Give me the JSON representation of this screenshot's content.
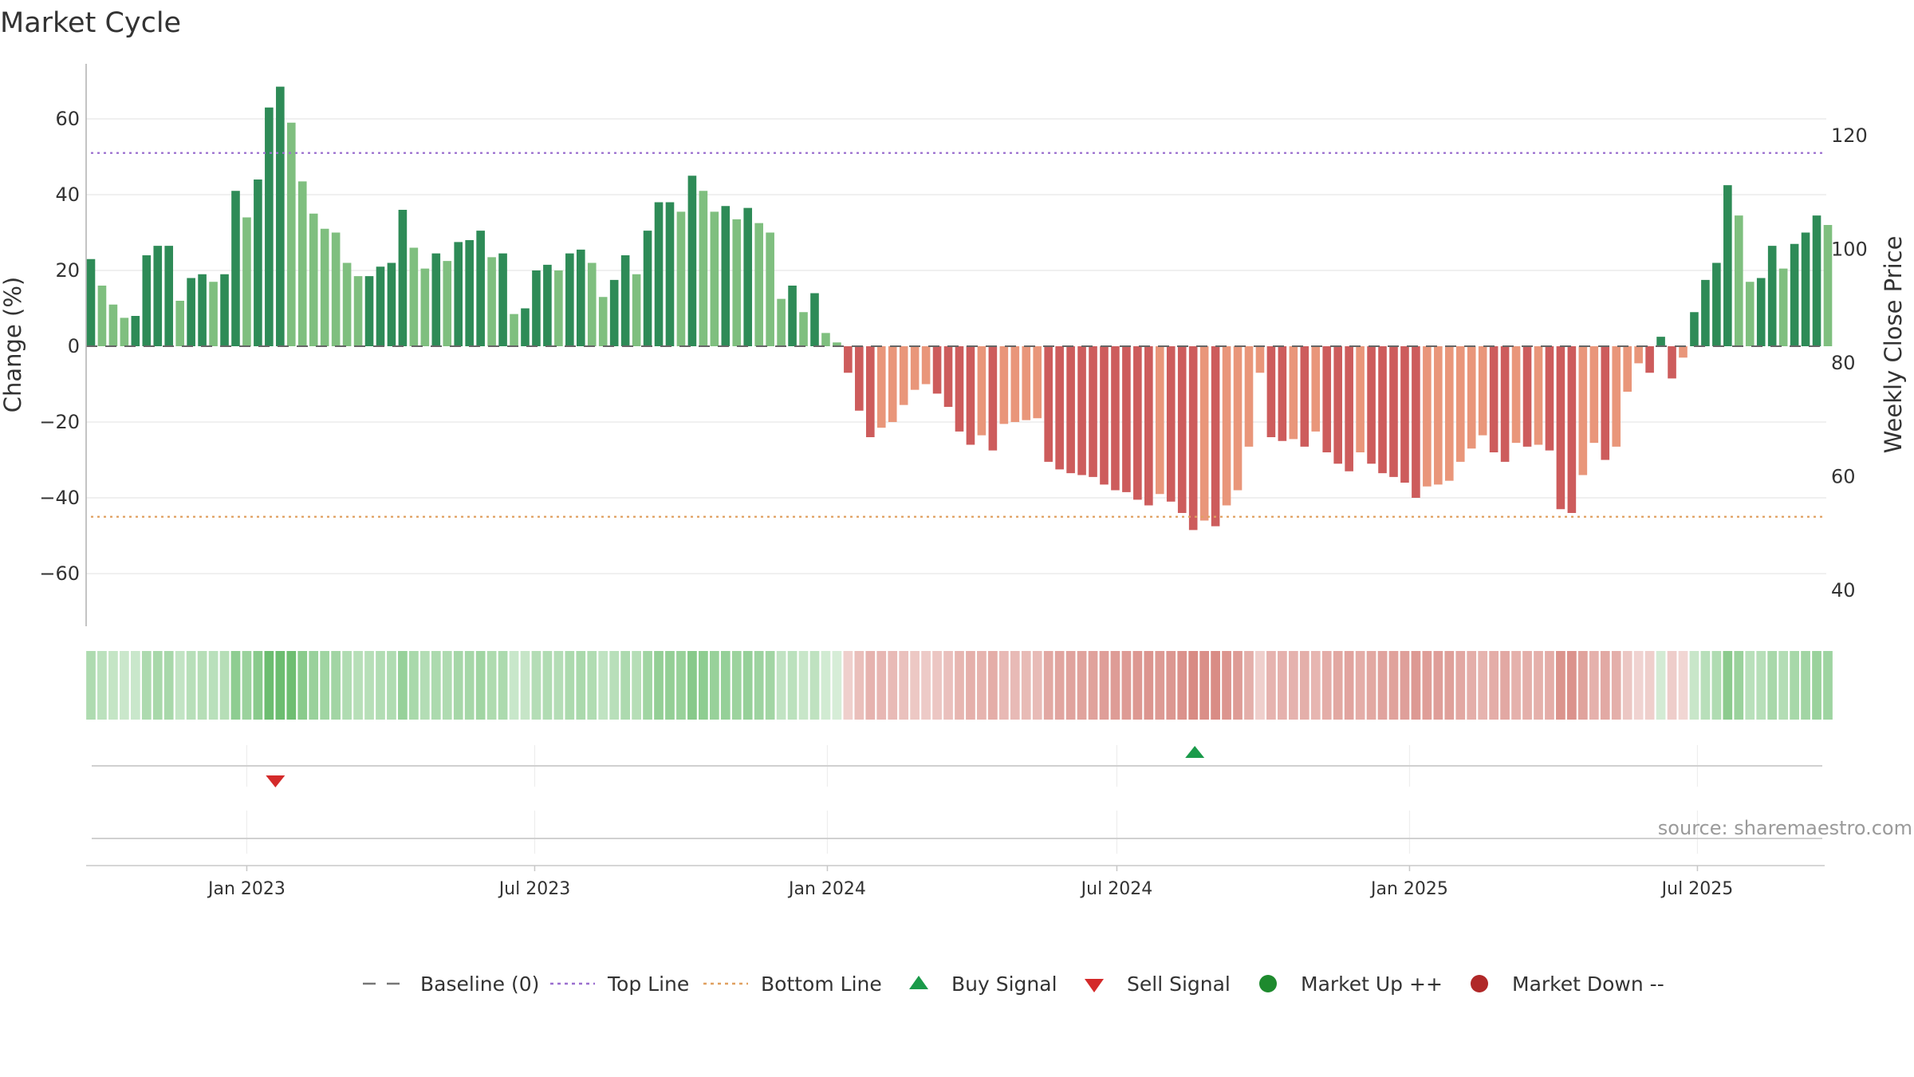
{
  "chart_data": {
    "type": "bar",
    "title": "Market Cycle",
    "ylabel": "Change (%)",
    "y2label": "Weekly Close Price",
    "ylim": [
      -75,
      75
    ],
    "y2lim": [
      33,
      133
    ],
    "yticks": [
      60,
      40,
      20,
      0,
      -20,
      -40,
      -60
    ],
    "ytick_labels": [
      "60",
      "40",
      "20",
      "0",
      "−20",
      "−40",
      "−60"
    ],
    "y2ticks": [
      120,
      100,
      80,
      60,
      40
    ],
    "xrange": [
      "2022-09-22",
      "2025-09-20"
    ],
    "xticks": [
      {
        "date": "2023-01-01",
        "label": "Jan 2023"
      },
      {
        "date": "2023-07-01",
        "label": "Jul 2023"
      },
      {
        "date": "2024-01-01",
        "label": "Jan 2024"
      },
      {
        "date": "2024-07-01",
        "label": "Jul 2024"
      },
      {
        "date": "2025-01-01",
        "label": "Jan 2025"
      },
      {
        "date": "2025-07-01",
        "label": "Jul 2025"
      }
    ],
    "first_week": "2022-09-25",
    "week_step_days": 7,
    "values": [
      23,
      16,
      11,
      7.5,
      8,
      24,
      26.5,
      26.5,
      12,
      18,
      19,
      17,
      19,
      41,
      34,
      44,
      63,
      68.5,
      59,
      43.5,
      35,
      31,
      30,
      22,
      18.5,
      18.5,
      21,
      22,
      36,
      26,
      20.5,
      24.5,
      22.5,
      27.5,
      28,
      30.5,
      23.5,
      24.5,
      8.5,
      10,
      20,
      21.5,
      20,
      24.5,
      25.5,
      22,
      13,
      17.5,
      24,
      19,
      30.5,
      38,
      38,
      35.5,
      45,
      41,
      35.5,
      37,
      33.5,
      36.5,
      32.5,
      30,
      12.5,
      16,
      9,
      14,
      3.5,
      1,
      -7,
      -17,
      -24,
      -21.5,
      -20,
      -15.5,
      -11.5,
      -10,
      -12.5,
      -16,
      -22.5,
      -26,
      -23.5,
      -27.5,
      -20.5,
      -20,
      -19.5,
      -19,
      -30.5,
      -32.5,
      -33.5,
      -34,
      -34.5,
      -36.5,
      -38,
      -38.5,
      -40.5,
      -42,
      -39,
      -41,
      -44,
      -48.5,
      -46,
      -47.5,
      -42,
      -38,
      -26.5,
      -7,
      -24,
      -25,
      -24.5,
      -26.5,
      -22.5,
      -28,
      -31,
      -33,
      -28,
      -31,
      -33.5,
      -34.5,
      -36,
      -40,
      -37,
      -36.5,
      -35.5,
      -30.5,
      -27,
      -23.5,
      -28,
      -30.5,
      -25.5,
      -26.5,
      -26,
      -27.5,
      -43,
      -44,
      -34,
      -25.5,
      -30,
      -26.5,
      -12,
      -4.5,
      -7,
      2.5,
      -8.5,
      -3,
      9,
      17.5,
      22,
      42.5,
      34.5,
      17,
      18,
      26.5,
      20.5,
      27,
      30,
      34.5,
      32
    ],
    "top_line": 51,
    "bottom_line": -45,
    "signals": [
      {
        "type": "sell",
        "date": "2023-01-19"
      },
      {
        "type": "buy",
        "date": "2024-08-19"
      }
    ],
    "legend": [
      {
        "label": "Baseline (0)",
        "symbol": "dash",
        "color": "#777777"
      },
      {
        "label": "Top Line",
        "symbol": "dot-purple",
        "color": "#9b6fcf"
      },
      {
        "label": "Bottom Line",
        "symbol": "dot-orange",
        "color": "#e0a060"
      },
      {
        "label": "Buy Signal",
        "symbol": "triangle-up",
        "color": "#1a9a4a"
      },
      {
        "label": "Sell Signal",
        "symbol": "triangle-down",
        "color": "#d42a2a"
      },
      {
        "label": "Market Up ++",
        "symbol": "circle",
        "color": "#1e8a2e"
      },
      {
        "label": "Market Down --",
        "symbol": "circle",
        "color": "#b02828"
      }
    ],
    "legend_position": "bottom",
    "colors": {
      "up_dark": "#2e8b57",
      "up_light": "#7fbf7f",
      "down_dark": "#cd5c5c",
      "down_light": "#e9967a",
      "heat_up": "#4caf50",
      "heat_down": "#c85a50",
      "grid": "#e6e6e6"
    },
    "grid": true
  },
  "source": "source: sharemaestro.com"
}
